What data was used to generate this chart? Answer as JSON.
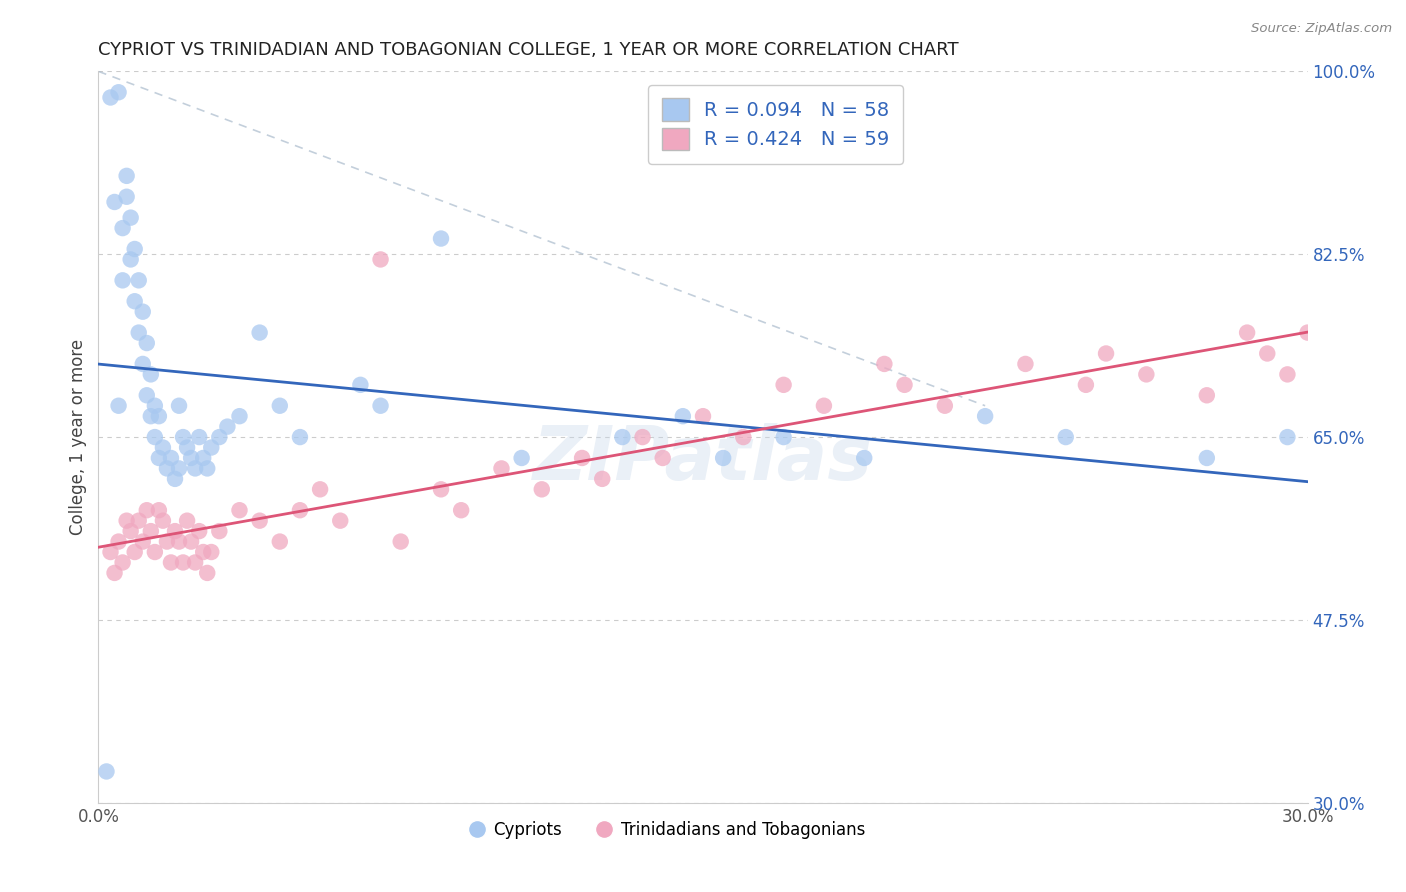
{
  "title": "CYPRIOT VS TRINIDADIAN AND TOBAGONIAN COLLEGE, 1 YEAR OR MORE CORRELATION CHART",
  "source": "Source: ZipAtlas.com",
  "ylabel": "College, 1 year or more",
  "xlim": [
    0.0,
    30.0
  ],
  "ylim": [
    30.0,
    100.0
  ],
  "xticks": [
    0.0,
    30.0
  ],
  "yticks": [
    30.0,
    47.5,
    65.0,
    82.5,
    100.0
  ],
  "xtick_labels": [
    "0.0%",
    "30.0%"
  ],
  "ytick_labels": [
    "30.0%",
    "47.5%",
    "65.0%",
    "82.5%",
    "100.0%"
  ],
  "blue_R": 0.094,
  "blue_N": 58,
  "pink_R": 0.424,
  "pink_N": 59,
  "blue_color": "#a8c8f0",
  "pink_color": "#f0a8c0",
  "blue_line_color": "#3366bb",
  "pink_line_color": "#dd5577",
  "blue_label": "Cypriots",
  "pink_label": "Trinidadians and Tobagonians",
  "watermark": "ZIPatlas",
  "legend_text_color": "#3366bb",
  "ytick_color": "#3366bb",
  "xtick_color": "#555555",
  "title_color": "#222222",
  "blue_x": [
    0.2,
    0.3,
    0.4,
    0.5,
    0.5,
    0.6,
    0.6,
    0.7,
    0.7,
    0.8,
    0.8,
    0.9,
    0.9,
    1.0,
    1.0,
    1.1,
    1.1,
    1.2,
    1.2,
    1.3,
    1.3,
    1.4,
    1.4,
    1.5,
    1.5,
    1.6,
    1.7,
    1.8,
    1.9,
    2.0,
    2.0,
    2.1,
    2.2,
    2.3,
    2.4,
    2.5,
    2.6,
    2.7,
    2.8,
    3.0,
    3.2,
    3.5,
    4.0,
    4.5,
    5.0,
    6.5,
    7.0,
    8.5,
    10.5,
    13.0,
    14.5,
    15.5,
    17.0,
    19.0,
    22.0,
    24.0,
    27.5,
    29.5
  ],
  "blue_y": [
    33.0,
    97.5,
    87.5,
    98.0,
    68.0,
    85.0,
    80.0,
    90.0,
    88.0,
    86.0,
    82.0,
    83.0,
    78.0,
    80.0,
    75.0,
    77.0,
    72.0,
    74.0,
    69.0,
    71.0,
    67.0,
    68.0,
    65.0,
    67.0,
    63.0,
    64.0,
    62.0,
    63.0,
    61.0,
    68.0,
    62.0,
    65.0,
    64.0,
    63.0,
    62.0,
    65.0,
    63.0,
    62.0,
    64.0,
    65.0,
    66.0,
    67.0,
    75.0,
    68.0,
    65.0,
    70.0,
    68.0,
    84.0,
    63.0,
    65.0,
    67.0,
    63.0,
    65.0,
    63.0,
    67.0,
    65.0,
    63.0,
    65.0
  ],
  "pink_x": [
    0.3,
    0.4,
    0.5,
    0.6,
    0.7,
    0.8,
    0.9,
    1.0,
    1.1,
    1.2,
    1.3,
    1.4,
    1.5,
    1.6,
    1.7,
    1.8,
    1.9,
    2.0,
    2.1,
    2.2,
    2.3,
    2.4,
    2.5,
    2.6,
    2.7,
    2.8,
    3.0,
    3.5,
    4.0,
    4.5,
    5.0,
    5.5,
    6.0,
    7.5,
    8.5,
    9.0,
    10.0,
    11.0,
    12.0,
    12.5,
    13.5,
    14.0,
    15.0,
    16.0,
    17.0,
    18.0,
    19.5,
    20.0,
    21.0,
    23.0,
    24.5,
    25.0,
    26.0,
    27.5,
    28.5,
    29.0,
    29.5,
    30.0,
    7.0
  ],
  "pink_y": [
    54.0,
    52.0,
    55.0,
    53.0,
    57.0,
    56.0,
    54.0,
    57.0,
    55.0,
    58.0,
    56.0,
    54.0,
    58.0,
    57.0,
    55.0,
    53.0,
    56.0,
    55.0,
    53.0,
    57.0,
    55.0,
    53.0,
    56.0,
    54.0,
    52.0,
    54.0,
    56.0,
    58.0,
    57.0,
    55.0,
    58.0,
    60.0,
    57.0,
    55.0,
    60.0,
    58.0,
    62.0,
    60.0,
    63.0,
    61.0,
    65.0,
    63.0,
    67.0,
    65.0,
    70.0,
    68.0,
    72.0,
    70.0,
    68.0,
    72.0,
    70.0,
    73.0,
    71.0,
    69.0,
    75.0,
    73.0,
    71.0,
    75.0,
    82.0
  ]
}
